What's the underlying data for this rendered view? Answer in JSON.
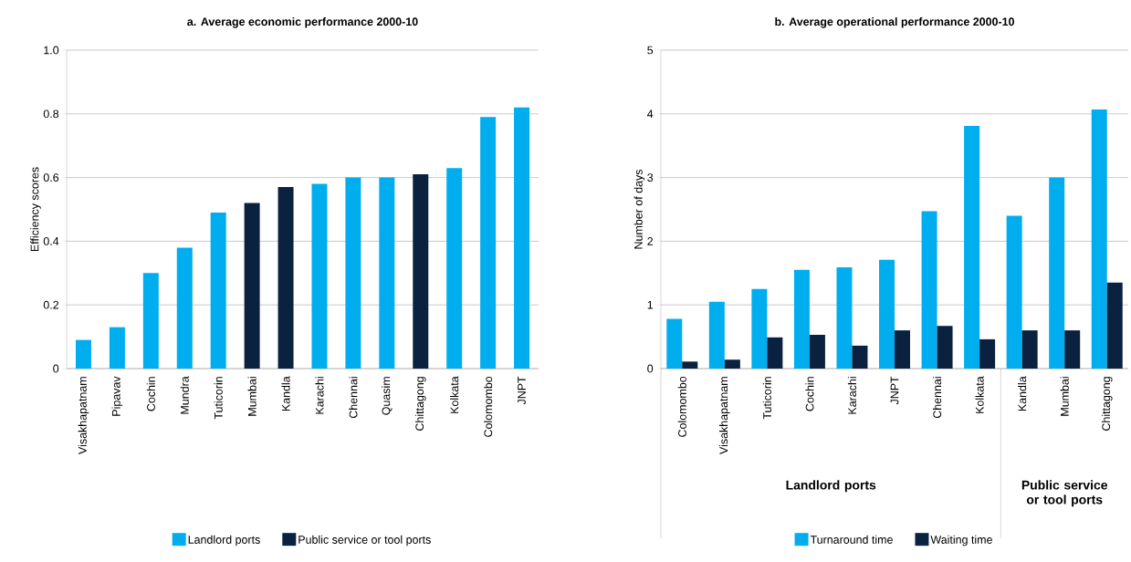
{
  "chart_data": [
    {
      "type": "bar",
      "title": "a. Average economic performance 2000-10",
      "ylabel": "Efficiency scores",
      "categories": [
        "Visakhapatnam",
        "Pipavav",
        "Cochin",
        "Mundra",
        "Tuticorin",
        "Mumbai",
        "Kandla",
        "Karachi",
        "Chennai",
        "Quasim",
        "Chittagong",
        "Kolkata",
        "Colomombo",
        "JNPT"
      ],
      "series": [
        {
          "name": "Landlord ports",
          "color": "#00aeef",
          "values": [
            0.09,
            0.13,
            0.3,
            0.38,
            0.49,
            null,
            null,
            0.58,
            0.6,
            0.6,
            null,
            0.63,
            0.79,
            0.82
          ]
        },
        {
          "name": "Public service or tool ports",
          "color": "#0a2240",
          "values": [
            null,
            null,
            null,
            null,
            null,
            0.52,
            0.57,
            null,
            null,
            null,
            0.61,
            null,
            null,
            null
          ]
        }
      ],
      "ylim": [
        0,
        1
      ],
      "yticks": [
        0,
        0.2,
        0.4,
        0.6,
        0.8,
        {
          "value": 1,
          "label": "1.0"
        }
      ],
      "grid": "y",
      "legend": "bottom"
    },
    {
      "type": "bar",
      "title": "b. Average operational performance 2000-10",
      "ylabel": "Number of days",
      "categories": [
        "Colomombo",
        "Visakhapatnam",
        "Tuticorin",
        "Cochin",
        "Karachi",
        "JNPT",
        "Chennai",
        "Kolkata",
        "Kandla",
        "Mumbai",
        "Chittagong"
      ],
      "series": [
        {
          "name": "Turnaround time",
          "color": "#00aeef",
          "values": [
            0.78,
            1.05,
            1.25,
            1.55,
            1.59,
            1.71,
            2.47,
            3.81,
            2.4,
            3.0,
            4.07
          ]
        },
        {
          "name": "Waiting time",
          "color": "#0a2240",
          "values": [
            0.11,
            0.14,
            0.49,
            0.53,
            0.36,
            0.6,
            0.67,
            0.46,
            0.6,
            0.6,
            1.35
          ]
        }
      ],
      "ylim": [
        0,
        5
      ],
      "yticks": [
        0,
        1,
        2,
        3,
        4,
        5
      ],
      "grid": "y",
      "legend": "bottom",
      "annotations": [
        "Landlord ports",
        "Public service or tool ports"
      ]
    }
  ]
}
